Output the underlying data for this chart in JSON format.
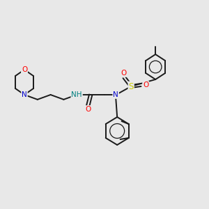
{
  "background_color": "#e8e8e8",
  "bond_color": "#1a1a1a",
  "atom_colors": {
    "O": "#ff0000",
    "N": "#0000cc",
    "S": "#cccc00",
    "H": "#008080",
    "C": "#1a1a1a"
  },
  "figsize": [
    3.0,
    3.0
  ],
  "dpi": 100,
  "lw": 1.4
}
